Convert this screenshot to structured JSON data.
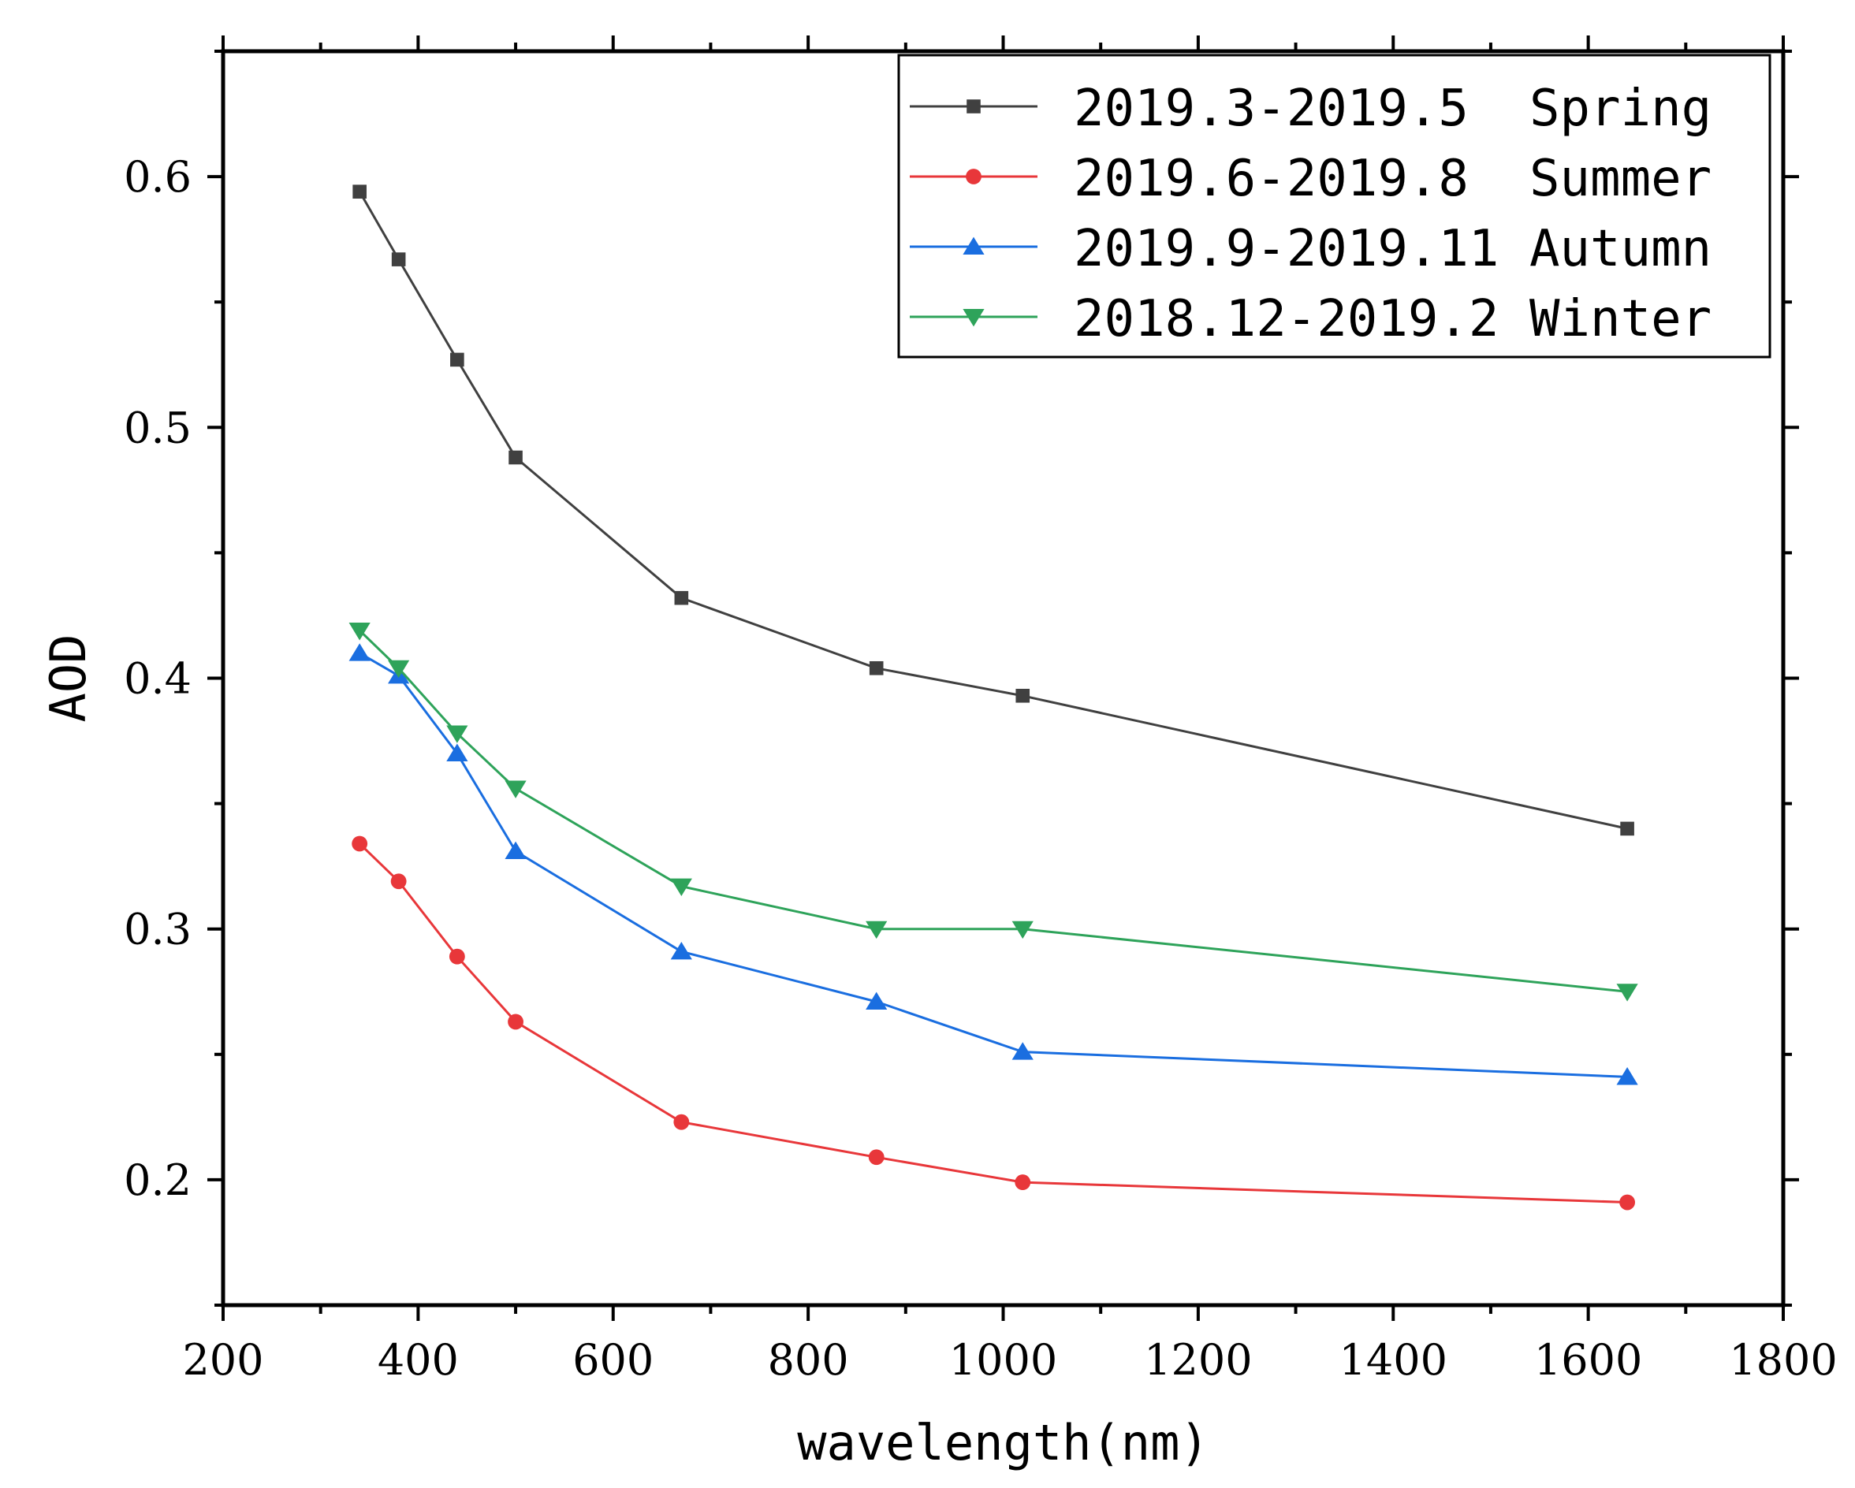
{
  "chart_data": {
    "type": "line",
    "title": "",
    "xlabel": "wavelength(nm)",
    "ylabel": "AOD",
    "xlim": [
      200,
      1800
    ],
    "ylim": [
      0.15,
      0.65
    ],
    "xticks": [
      200,
      400,
      600,
      800,
      1000,
      1200,
      1400,
      1600,
      1800
    ],
    "xtick_labels": [
      "200",
      "400",
      "600",
      "800",
      "1000",
      "1200",
      "1400",
      "1600",
      "1800"
    ],
    "yticks": [
      0.2,
      0.3,
      0.4,
      0.5,
      0.6
    ],
    "ytick_labels": [
      "0.2",
      "0.3",
      "0.4",
      "0.5",
      "0.6"
    ],
    "x": [
      340,
      380,
      440,
      500,
      670,
      870,
      1020,
      1640
    ],
    "legend_position": "top-right",
    "series": [
      {
        "name": "2019.3-2019.5  Spring",
        "color": "#404040",
        "marker": "square",
        "values": [
          0.594,
          0.567,
          0.527,
          0.488,
          0.432,
          0.404,
          0.393,
          0.34
        ]
      },
      {
        "name": "2019.6-2019.8  Summer",
        "color": "#e8373a",
        "marker": "circle",
        "values": [
          0.334,
          0.319,
          0.289,
          0.263,
          0.223,
          0.209,
          0.199,
          0.191
        ]
      },
      {
        "name": "2019.9-2019.11 Autumn",
        "color": "#1a6ee0",
        "marker": "triangle-up",
        "values": [
          0.41,
          0.401,
          0.37,
          0.331,
          0.291,
          0.271,
          0.251,
          0.241
        ]
      },
      {
        "name": "2018.12-2019.2 Winter",
        "color": "#2ea35a",
        "marker": "triangle-down",
        "values": [
          0.419,
          0.404,
          0.378,
          0.356,
          0.317,
          0.3,
          0.3,
          0.275
        ]
      }
    ]
  }
}
